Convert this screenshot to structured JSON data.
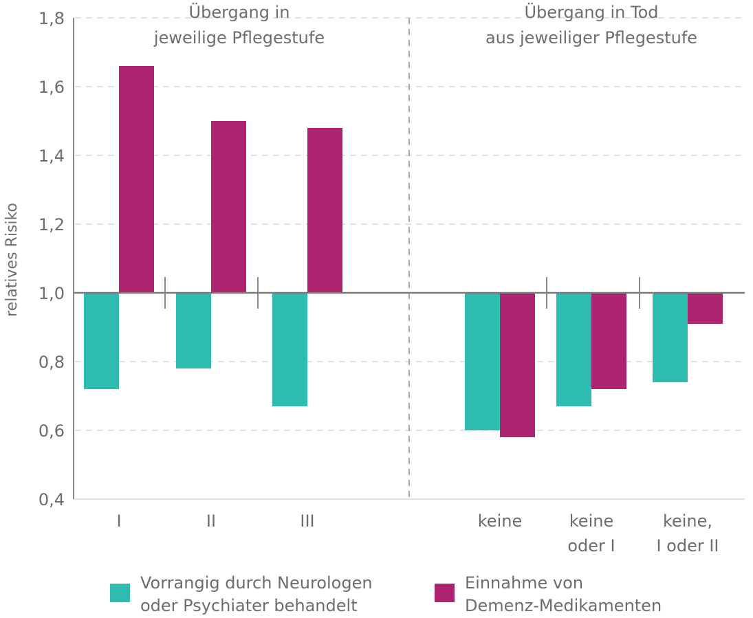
{
  "chart_data": {
    "type": "bar",
    "ylabel": "relatives Risiko",
    "ylim": [
      0.4,
      1.8
    ],
    "yticks": [
      "0,4",
      "0,6",
      "0,8",
      "1,0",
      "1,2",
      "1,4",
      "1,6",
      "1,8"
    ],
    "baseline": 1.0,
    "grid": true,
    "legend_position": "bottom",
    "groups": [
      {
        "heading": [
          "Übergang in",
          "jeweilige Pflegestufe"
        ],
        "categories": [
          [
            "I"
          ],
          [
            "II"
          ],
          [
            "III"
          ]
        ]
      },
      {
        "heading": [
          "Übergang in Tod",
          "aus jeweiliger Pflegestufe"
        ],
        "categories": [
          [
            "keine"
          ],
          [
            "keine",
            "oder I"
          ],
          [
            "keine,",
            "I oder II"
          ]
        ]
      }
    ],
    "series": [
      {
        "name": [
          "Vorrangig durch Neurologen",
          "oder Psychiater behandelt"
        ],
        "color": "#2ebbb0",
        "values": [
          0.72,
          0.78,
          0.67,
          0.6,
          0.67,
          0.74
        ]
      },
      {
        "name": [
          "Einnahme von",
          "Demenz-Medikamenten"
        ],
        "color": "#ac2470",
        "values": [
          1.66,
          1.5,
          1.48,
          0.58,
          0.72,
          0.91
        ]
      }
    ]
  }
}
